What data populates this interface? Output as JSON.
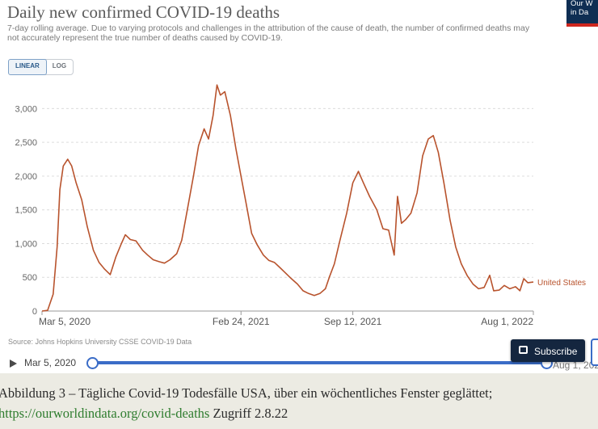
{
  "title": "Daily new confirmed COVID-19 deaths",
  "subtitle": "7-day rolling average. Due to varying protocols and challenges in the attribution of the cause of death, the number of confirmed deaths may not accurately represent the true number of deaths caused by COVID-19.",
  "logo": {
    "line1": "Our W",
    "line2": "in Da"
  },
  "scale_toggle": {
    "linear": "LINEAR",
    "log": "LOG",
    "selected": "LINEAR"
  },
  "source": "Source: Johns Hopkins University CSSE COVID-19 Data",
  "timeline": {
    "start": "Mar 5, 2020",
    "end": "Aug 1, 2022"
  },
  "subscribe_label": "Subscribe",
  "caption": {
    "line1": "Abbildung 3 – Tägliche Covid-19 Todesfälle USA, über ein wöchentliches Fenster geglättet;",
    "link": "https://ourworldindata.org/covid-deaths",
    "suffix": " Zugriff 2.8.22"
  },
  "colors": {
    "series": "#b8532d",
    "accent": "#3a6cc7",
    "logo_bg": "#0f2e53",
    "logo_bar": "#ce261e"
  },
  "chart_data": {
    "type": "line",
    "title": "Daily new confirmed COVID-19 deaths",
    "x_ticks": [
      "Mar 5, 2020",
      "Feb 24, 2021",
      "Sep 12, 2021",
      "Aug 1, 2022"
    ],
    "y_ticks": [
      "0",
      "500",
      "1,000",
      "1,500",
      "2,000",
      "2,500",
      "3,000"
    ],
    "ylim": [
      0,
      3400
    ],
    "xlim": [
      "2020-03-05",
      "2022-08-01"
    ],
    "grid": "horizontal",
    "series": [
      {
        "name": "United States",
        "points": [
          [
            "2020-03-05",
            0
          ],
          [
            "2020-03-15",
            10
          ],
          [
            "2020-03-25",
            250
          ],
          [
            "2020-04-01",
            950
          ],
          [
            "2020-04-06",
            1800
          ],
          [
            "2020-04-12",
            2150
          ],
          [
            "2020-04-20",
            2250
          ],
          [
            "2020-04-27",
            2150
          ],
          [
            "2020-05-05",
            1900
          ],
          [
            "2020-05-15",
            1650
          ],
          [
            "2020-05-25",
            1250
          ],
          [
            "2020-06-05",
            900
          ],
          [
            "2020-06-15",
            720
          ],
          [
            "2020-06-25",
            620
          ],
          [
            "2020-07-05",
            540
          ],
          [
            "2020-07-15",
            800
          ],
          [
            "2020-07-25",
            1000
          ],
          [
            "2020-08-01",
            1130
          ],
          [
            "2020-08-10",
            1060
          ],
          [
            "2020-08-20",
            1040
          ],
          [
            "2020-09-01",
            900
          ],
          [
            "2020-09-10",
            830
          ],
          [
            "2020-09-20",
            760
          ],
          [
            "2020-10-01",
            730
          ],
          [
            "2020-10-10",
            710
          ],
          [
            "2020-10-20",
            760
          ],
          [
            "2020-11-01",
            850
          ],
          [
            "2020-11-10",
            1050
          ],
          [
            "2020-11-20",
            1500
          ],
          [
            "2020-12-01",
            2000
          ],
          [
            "2020-12-10",
            2450
          ],
          [
            "2020-12-20",
            2700
          ],
          [
            "2020-12-28",
            2550
          ],
          [
            "2021-01-05",
            2900
          ],
          [
            "2021-01-12",
            3350
          ],
          [
            "2021-01-18",
            3200
          ],
          [
            "2021-01-26",
            3250
          ],
          [
            "2021-02-05",
            2900
          ],
          [
            "2021-02-15",
            2400
          ],
          [
            "2021-02-24",
            2000
          ],
          [
            "2021-03-05",
            1600
          ],
          [
            "2021-03-15",
            1150
          ],
          [
            "2021-03-25",
            980
          ],
          [
            "2021-04-05",
            830
          ],
          [
            "2021-04-15",
            750
          ],
          [
            "2021-04-25",
            720
          ],
          [
            "2021-05-05",
            640
          ],
          [
            "2021-05-15",
            560
          ],
          [
            "2021-05-25",
            480
          ],
          [
            "2021-06-05",
            400
          ],
          [
            "2021-06-15",
            300
          ],
          [
            "2021-06-25",
            260
          ],
          [
            "2021-07-05",
            230
          ],
          [
            "2021-07-15",
            260
          ],
          [
            "2021-07-25",
            330
          ],
          [
            "2021-08-01",
            500
          ],
          [
            "2021-08-10",
            700
          ],
          [
            "2021-08-20",
            1050
          ],
          [
            "2021-09-01",
            1450
          ],
          [
            "2021-09-12",
            1900
          ],
          [
            "2021-09-22",
            2070
          ],
          [
            "2021-10-01",
            1900
          ],
          [
            "2021-10-12",
            1700
          ],
          [
            "2021-10-25",
            1500
          ],
          [
            "2021-11-05",
            1220
          ],
          [
            "2021-11-15",
            1200
          ],
          [
            "2021-11-25",
            830
          ],
          [
            "2021-12-01",
            1700
          ],
          [
            "2021-12-08",
            1300
          ],
          [
            "2021-12-15",
            1350
          ],
          [
            "2021-12-25",
            1450
          ],
          [
            "2022-01-05",
            1750
          ],
          [
            "2022-01-15",
            2300
          ],
          [
            "2022-01-25",
            2550
          ],
          [
            "2022-02-03",
            2600
          ],
          [
            "2022-02-12",
            2350
          ],
          [
            "2022-02-22",
            1900
          ],
          [
            "2022-03-05",
            1350
          ],
          [
            "2022-03-15",
            950
          ],
          [
            "2022-03-25",
            700
          ],
          [
            "2022-04-05",
            520
          ],
          [
            "2022-04-15",
            400
          ],
          [
            "2022-04-25",
            330
          ],
          [
            "2022-05-05",
            350
          ],
          [
            "2022-05-15",
            530
          ],
          [
            "2022-05-22",
            300
          ],
          [
            "2022-06-01",
            310
          ],
          [
            "2022-06-10",
            380
          ],
          [
            "2022-06-20",
            330
          ],
          [
            "2022-06-30",
            360
          ],
          [
            "2022-07-08",
            300
          ],
          [
            "2022-07-15",
            480
          ],
          [
            "2022-07-22",
            420
          ],
          [
            "2022-08-01",
            430
          ]
        ]
      }
    ]
  }
}
